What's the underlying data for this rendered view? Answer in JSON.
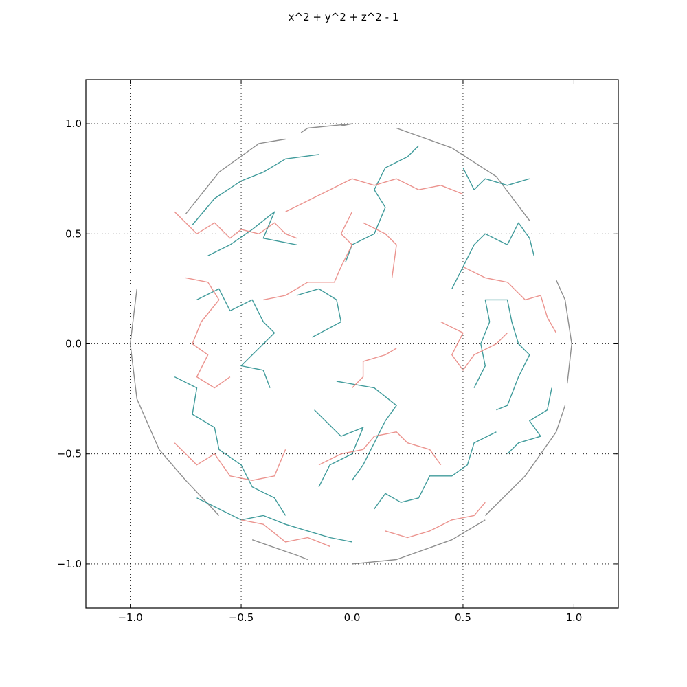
{
  "chart_data": {
    "type": "line",
    "title": "x^2 + y^2 + z^2 - 1",
    "xlim": [
      -1.2,
      1.2
    ],
    "ylim": [
      -1.2,
      1.2
    ],
    "grid": true,
    "x_ticks": [
      -1.0,
      -0.5,
      0.0,
      0.5,
      1.0
    ],
    "y_ticks": [
      -1.0,
      -0.5,
      0.0,
      0.5,
      1.0
    ],
    "x_tick_labels": [
      "−1.0",
      "−0.5",
      "0.0",
      "0.5",
      "1.0"
    ],
    "y_tick_labels": [
      "−1.0",
      "−0.5",
      "0.0",
      "0.5",
      "1.0"
    ],
    "colors": {
      "teal": "#1f8a8a",
      "salmon": "#e8807a",
      "gray": "#7a7a7a"
    },
    "series": [
      {
        "color": "gray",
        "points": [
          [
            -0.05,
            0.99
          ],
          [
            0.0,
            1.0
          ],
          [
            -0.2,
            0.98
          ],
          [
            -0.23,
            0.96
          ]
        ]
      },
      {
        "color": "gray",
        "points": [
          [
            -0.75,
            0.59
          ],
          [
            -0.6,
            0.78
          ],
          [
            -0.42,
            0.91
          ],
          [
            -0.3,
            0.93
          ]
        ]
      },
      {
        "color": "gray",
        "points": [
          [
            0.2,
            0.98
          ],
          [
            0.45,
            0.89
          ],
          [
            0.65,
            0.76
          ],
          [
            0.8,
            0.56
          ]
        ]
      },
      {
        "color": "gray",
        "points": [
          [
            0.92,
            0.29
          ],
          [
            0.96,
            0.2
          ],
          [
            0.99,
            0.0
          ],
          [
            0.97,
            -0.18
          ]
        ]
      },
      {
        "color": "gray",
        "points": [
          [
            -0.97,
            0.25
          ],
          [
            -1.0,
            0.0
          ],
          [
            -0.97,
            -0.25
          ],
          [
            -0.87,
            -0.48
          ],
          [
            -0.75,
            -0.62
          ],
          [
            -0.6,
            -0.78
          ]
        ]
      },
      {
        "color": "gray",
        "points": [
          [
            -0.45,
            -0.89
          ],
          [
            -0.25,
            -0.96
          ],
          [
            -0.2,
            -0.98
          ]
        ]
      },
      {
        "color": "gray",
        "points": [
          [
            0.0,
            -1.0
          ],
          [
            0.2,
            -0.98
          ],
          [
            0.45,
            -0.89
          ],
          [
            0.6,
            -0.8
          ]
        ]
      },
      {
        "color": "gray",
        "points": [
          [
            0.6,
            -0.78
          ],
          [
            0.78,
            -0.6
          ],
          [
            0.92,
            -0.4
          ],
          [
            0.96,
            -0.28
          ]
        ]
      },
      {
        "color": "teal",
        "points": [
          [
            -0.72,
            0.54
          ],
          [
            -0.62,
            0.66
          ],
          [
            -0.5,
            0.74
          ],
          [
            -0.4,
            0.78
          ],
          [
            -0.3,
            0.84
          ],
          [
            -0.15,
            0.86
          ]
        ]
      },
      {
        "color": "teal",
        "points": [
          [
            -0.65,
            0.4
          ],
          [
            -0.55,
            0.45
          ],
          [
            -0.45,
            0.52
          ],
          [
            -0.35,
            0.6
          ],
          [
            -0.4,
            0.48
          ],
          [
            -0.25,
            0.45
          ]
        ]
      },
      {
        "color": "teal",
        "points": [
          [
            -0.7,
            0.2
          ],
          [
            -0.6,
            0.25
          ],
          [
            -0.55,
            0.15
          ],
          [
            -0.45,
            0.2
          ],
          [
            -0.4,
            0.1
          ],
          [
            -0.35,
            0.05
          ],
          [
            -0.45,
            -0.05
          ],
          [
            -0.5,
            -0.1
          ],
          [
            -0.4,
            -0.12
          ],
          [
            -0.37,
            -0.2
          ]
        ]
      },
      {
        "color": "teal",
        "points": [
          [
            -0.8,
            -0.15
          ],
          [
            -0.7,
            -0.2
          ],
          [
            -0.72,
            -0.32
          ],
          [
            -0.62,
            -0.38
          ],
          [
            -0.6,
            -0.48
          ],
          [
            -0.5,
            -0.55
          ],
          [
            -0.45,
            -0.65
          ],
          [
            -0.35,
            -0.7
          ],
          [
            -0.3,
            -0.78
          ]
        ]
      },
      {
        "color": "teal",
        "points": [
          [
            -0.7,
            -0.7
          ],
          [
            -0.6,
            -0.75
          ],
          [
            -0.5,
            -0.8
          ],
          [
            -0.4,
            -0.78
          ],
          [
            -0.3,
            -0.82
          ],
          [
            -0.2,
            -0.85
          ],
          [
            -0.1,
            -0.88
          ],
          [
            0.0,
            -0.9
          ]
        ]
      },
      {
        "color": "teal",
        "points": [
          [
            0.0,
            -0.62
          ],
          [
            0.05,
            -0.55
          ],
          [
            0.1,
            -0.45
          ],
          [
            0.15,
            -0.35
          ],
          [
            0.2,
            -0.28
          ],
          [
            0.1,
            -0.2
          ],
          [
            -0.07,
            -0.17
          ]
        ]
      },
      {
        "color": "teal",
        "points": [
          [
            -0.17,
            -0.3
          ],
          [
            -0.05,
            -0.42
          ],
          [
            0.05,
            -0.38
          ],
          [
            0.0,
            -0.5
          ],
          [
            -0.1,
            -0.55
          ],
          [
            -0.15,
            -0.65
          ]
        ]
      },
      {
        "color": "teal",
        "points": [
          [
            0.1,
            -0.75
          ],
          [
            0.15,
            -0.68
          ],
          [
            0.22,
            -0.72
          ],
          [
            0.3,
            -0.7
          ],
          [
            0.35,
            -0.6
          ],
          [
            0.45,
            -0.6
          ],
          [
            0.52,
            -0.55
          ],
          [
            0.55,
            -0.45
          ],
          [
            0.65,
            -0.4
          ]
        ]
      },
      {
        "color": "teal",
        "points": [
          [
            0.55,
            -0.2
          ],
          [
            0.6,
            -0.1
          ],
          [
            0.58,
            0.0
          ],
          [
            0.62,
            0.1
          ],
          [
            0.6,
            0.2
          ],
          [
            0.7,
            0.2
          ],
          [
            0.72,
            0.1
          ],
          [
            0.75,
            0.0
          ],
          [
            0.8,
            -0.05
          ],
          [
            0.75,
            -0.15
          ],
          [
            0.7,
            -0.28
          ],
          [
            0.65,
            -0.3
          ]
        ]
      },
      {
        "color": "teal",
        "points": [
          [
            0.45,
            0.25
          ],
          [
            0.5,
            0.35
          ],
          [
            0.55,
            0.45
          ],
          [
            0.6,
            0.5
          ],
          [
            0.7,
            0.45
          ],
          [
            0.75,
            0.55
          ],
          [
            0.8,
            0.48
          ],
          [
            0.82,
            0.4
          ]
        ]
      },
      {
        "color": "teal",
        "points": [
          [
            0.3,
            0.9
          ],
          [
            0.25,
            0.85
          ],
          [
            0.15,
            0.8
          ],
          [
            0.1,
            0.7
          ],
          [
            0.15,
            0.62
          ],
          [
            0.1,
            0.5
          ],
          [
            0.0,
            0.45
          ],
          [
            -0.03,
            0.37
          ]
        ]
      },
      {
        "color": "teal",
        "points": [
          [
            0.5,
            0.8
          ],
          [
            0.55,
            0.7
          ],
          [
            0.6,
            0.75
          ],
          [
            0.7,
            0.72
          ],
          [
            0.8,
            0.75
          ]
        ]
      },
      {
        "color": "teal",
        "points": [
          [
            0.7,
            -0.5
          ],
          [
            0.75,
            -0.45
          ],
          [
            0.85,
            -0.42
          ],
          [
            0.8,
            -0.35
          ],
          [
            0.88,
            -0.3
          ],
          [
            0.9,
            -0.2
          ]
        ]
      },
      {
        "color": "teal",
        "points": [
          [
            -0.25,
            0.22
          ],
          [
            -0.15,
            0.25
          ],
          [
            -0.07,
            0.2
          ],
          [
            -0.05,
            0.1
          ],
          [
            -0.18,
            0.03
          ]
        ]
      },
      {
        "color": "salmon",
        "points": [
          [
            -0.8,
            0.6
          ],
          [
            -0.7,
            0.5
          ],
          [
            -0.62,
            0.55
          ],
          [
            -0.55,
            0.48
          ],
          [
            -0.5,
            0.52
          ],
          [
            -0.42,
            0.5
          ],
          [
            -0.35,
            0.55
          ],
          [
            -0.3,
            0.5
          ],
          [
            -0.25,
            0.48
          ]
        ]
      },
      {
        "color": "salmon",
        "points": [
          [
            -0.75,
            0.3
          ],
          [
            -0.65,
            0.28
          ],
          [
            -0.6,
            0.2
          ],
          [
            -0.68,
            0.1
          ],
          [
            -0.72,
            0.0
          ],
          [
            -0.65,
            -0.05
          ],
          [
            -0.7,
            -0.15
          ],
          [
            -0.62,
            -0.2
          ],
          [
            -0.55,
            -0.15
          ]
        ]
      },
      {
        "color": "salmon",
        "points": [
          [
            -0.3,
            0.6
          ],
          [
            -0.2,
            0.65
          ],
          [
            -0.1,
            0.7
          ],
          [
            0.0,
            0.75
          ],
          [
            0.1,
            0.72
          ],
          [
            0.2,
            0.75
          ],
          [
            0.3,
            0.7
          ],
          [
            0.4,
            0.72
          ],
          [
            0.5,
            0.68
          ]
        ]
      },
      {
        "color": "salmon",
        "points": [
          [
            0.0,
            0.6
          ],
          [
            -0.05,
            0.5
          ],
          [
            0.0,
            0.45
          ],
          [
            -0.05,
            0.35
          ],
          [
            -0.08,
            0.28
          ],
          [
            -0.2,
            0.28
          ],
          [
            -0.3,
            0.22
          ],
          [
            -0.4,
            0.2
          ]
        ]
      },
      {
        "color": "salmon",
        "points": [
          [
            0.05,
            0.55
          ],
          [
            0.15,
            0.5
          ],
          [
            0.2,
            0.45
          ],
          [
            0.18,
            0.3
          ]
        ]
      },
      {
        "color": "salmon",
        "points": [
          [
            -0.8,
            -0.45
          ],
          [
            -0.7,
            -0.55
          ],
          [
            -0.62,
            -0.5
          ],
          [
            -0.55,
            -0.6
          ],
          [
            -0.45,
            -0.62
          ],
          [
            -0.35,
            -0.6
          ],
          [
            -0.3,
            -0.48
          ]
        ]
      },
      {
        "color": "salmon",
        "points": [
          [
            0.2,
            -0.02
          ],
          [
            0.15,
            -0.05
          ],
          [
            0.05,
            -0.08
          ],
          [
            0.05,
            -0.15
          ],
          [
            0.0,
            -0.2
          ]
        ]
      },
      {
        "color": "salmon",
        "points": [
          [
            -0.15,
            -0.55
          ],
          [
            -0.05,
            -0.5
          ],
          [
            0.05,
            -0.48
          ],
          [
            0.1,
            -0.42
          ],
          [
            0.2,
            -0.4
          ],
          [
            0.25,
            -0.45
          ],
          [
            0.35,
            -0.48
          ],
          [
            0.4,
            -0.55
          ]
        ]
      },
      {
        "color": "salmon",
        "points": [
          [
            0.4,
            0.1
          ],
          [
            0.5,
            0.05
          ],
          [
            0.45,
            -0.05
          ],
          [
            0.5,
            -0.12
          ],
          [
            0.55,
            -0.05
          ],
          [
            0.65,
            0.0
          ],
          [
            0.7,
            0.05
          ]
        ]
      },
      {
        "color": "salmon",
        "points": [
          [
            0.15,
            -0.85
          ],
          [
            0.25,
            -0.88
          ],
          [
            0.35,
            -0.85
          ],
          [
            0.45,
            -0.8
          ],
          [
            0.55,
            -0.78
          ],
          [
            0.6,
            -0.72
          ]
        ]
      },
      {
        "color": "salmon",
        "points": [
          [
            0.5,
            0.35
          ],
          [
            0.6,
            0.3
          ],
          [
            0.7,
            0.28
          ],
          [
            0.78,
            0.2
          ],
          [
            0.85,
            0.22
          ],
          [
            0.88,
            0.12
          ],
          [
            0.92,
            0.05
          ]
        ]
      },
      {
        "color": "salmon",
        "points": [
          [
            -0.5,
            -0.8
          ],
          [
            -0.4,
            -0.82
          ],
          [
            -0.3,
            -0.9
          ],
          [
            -0.2,
            -0.88
          ],
          [
            -0.1,
            -0.92
          ]
        ]
      }
    ]
  }
}
